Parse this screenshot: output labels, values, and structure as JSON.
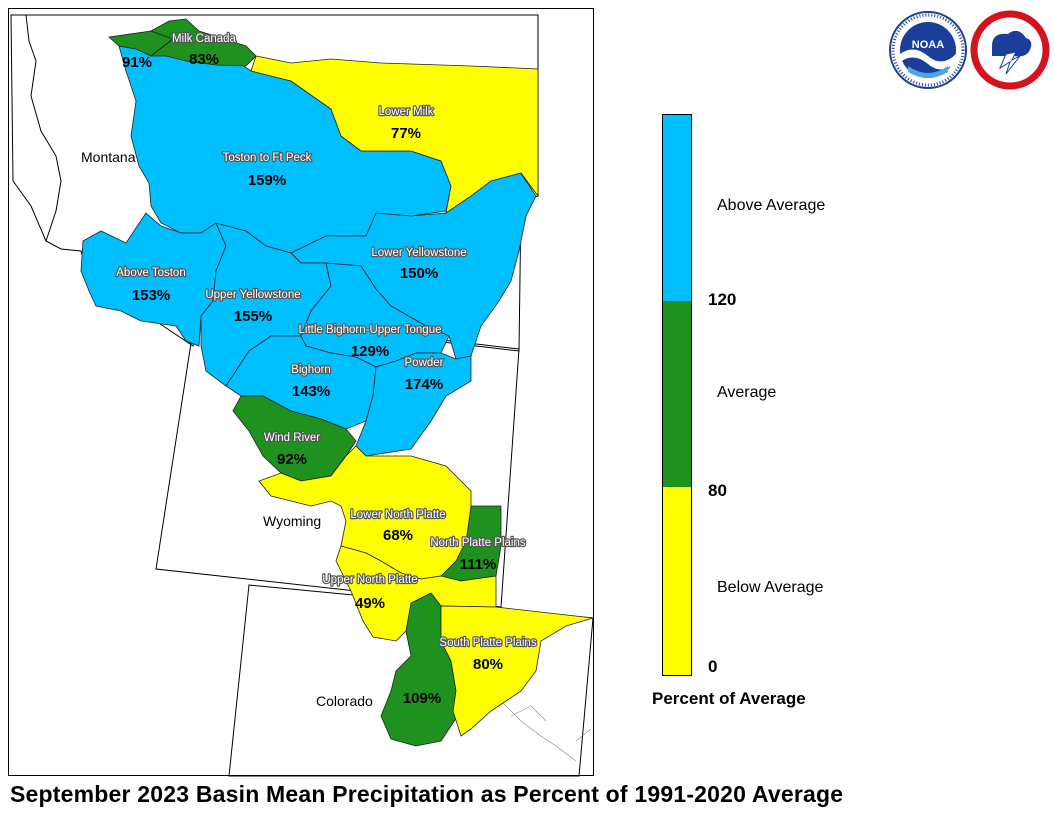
{
  "title": "September 2023 Basin Mean Precipitation as Percent of 1991-2020 Average",
  "colors": {
    "above": "#00BFFF",
    "average": "#1F911F",
    "below": "#FFFF00",
    "noaa_blue": "#1B3E9A",
    "nws_red": "#D4131C"
  },
  "legend": {
    "title": "Percent of Average",
    "categories": [
      {
        "label": "Above Average",
        "color": "#00BFFF"
      },
      {
        "label": "Average",
        "color": "#1F911F"
      },
      {
        "label": "Below Average",
        "color": "#FFFF00"
      }
    ],
    "ticks": [
      "120",
      "80",
      "0"
    ]
  },
  "states": {
    "montana": "Montana",
    "wyoming": "Wyoming",
    "colorado": "Colorado"
  },
  "logos": {
    "noaa": "NOAA",
    "nws": "NATIONAL WEATHER SERVICE"
  },
  "basins": [
    {
      "name": "",
      "value": "91%",
      "category": "average"
    },
    {
      "name": "Milk Canada",
      "value": "83%",
      "category": "average"
    },
    {
      "name": "Lower Milk",
      "value": "77%",
      "category": "below"
    },
    {
      "name": "Toston to Ft Peck",
      "value": "159%",
      "category": "above"
    },
    {
      "name": "Above Toston",
      "value": "153%",
      "category": "above"
    },
    {
      "name": "Lower Yellowstone",
      "value": "150%",
      "category": "above"
    },
    {
      "name": "Upper Yellowstone",
      "value": "155%",
      "category": "above"
    },
    {
      "name": "Little Bighorn-Upper Tongue",
      "value": "129%",
      "category": "above"
    },
    {
      "name": "Bighorn",
      "value": "143%",
      "category": "above"
    },
    {
      "name": "Powder",
      "value": "174%",
      "category": "above"
    },
    {
      "name": "Wind River",
      "value": "92%",
      "category": "average"
    },
    {
      "name": "Lower North Platte",
      "value": "68%",
      "category": "below"
    },
    {
      "name": "North Platte Plains",
      "value": "111%",
      "category": "average"
    },
    {
      "name": "Upper North Platte",
      "value": "49%",
      "category": "below"
    },
    {
      "name": "South Platte Plains",
      "value": "80%",
      "category": "below"
    },
    {
      "name": "",
      "value": "109%",
      "category": "average"
    }
  ]
}
